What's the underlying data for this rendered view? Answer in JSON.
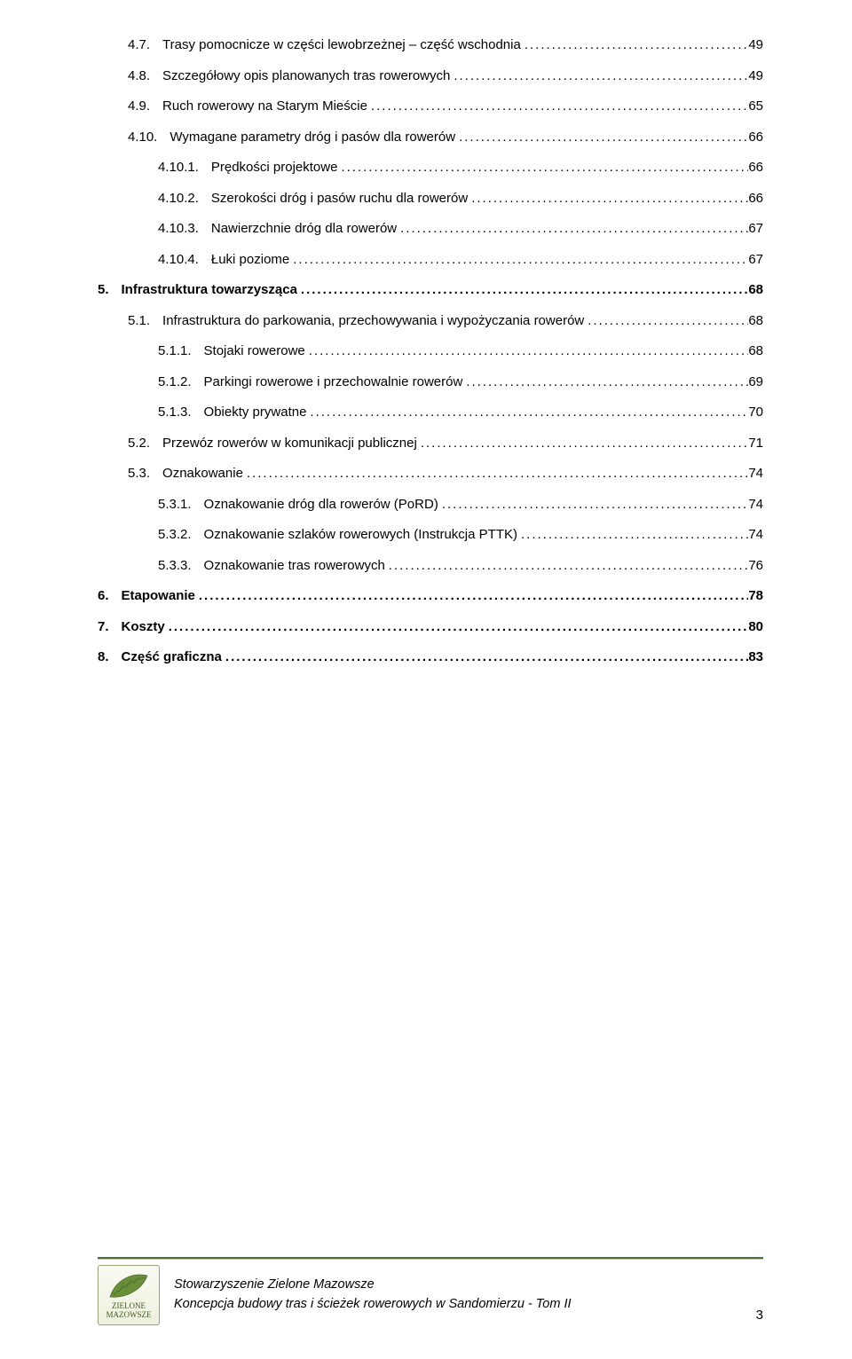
{
  "toc": [
    {
      "lvl": 2,
      "num": "4.7.",
      "title": "Trasy pomocnicze w części lewobrzeżnej – część wschodnia",
      "page": "49",
      "bold": false
    },
    {
      "lvl": 2,
      "num": "4.8.",
      "title": "Szczegółowy opis planowanych tras rowerowych",
      "page": "49",
      "bold": false
    },
    {
      "lvl": 2,
      "num": "4.9.",
      "title": "Ruch rowerowy na Starym Mieście",
      "page": "65",
      "bold": false
    },
    {
      "lvl": 2,
      "num": "4.10.",
      "title": "Wymagane parametry dróg i pasów dla rowerów",
      "page": "66",
      "bold": false
    },
    {
      "lvl": 3,
      "num": "4.10.1.",
      "title": "Prędkości projektowe",
      "page": "66",
      "bold": false
    },
    {
      "lvl": 3,
      "num": "4.10.2.",
      "title": "Szerokości dróg i pasów ruchu dla rowerów",
      "page": "66",
      "bold": false
    },
    {
      "lvl": 3,
      "num": "4.10.3.",
      "title": "Nawierzchnie dróg dla rowerów",
      "page": "67",
      "bold": false
    },
    {
      "lvl": 3,
      "num": "4.10.4.",
      "title": "Łuki poziome",
      "page": "67",
      "bold": false
    },
    {
      "lvl": 1,
      "num": "5.",
      "title": "Infrastruktura towarzysząca",
      "page": "68",
      "bold": true
    },
    {
      "lvl": 2,
      "num": "5.1.",
      "title": "Infrastruktura do parkowania, przechowywania i wypożyczania rowerów",
      "page": "68",
      "bold": false
    },
    {
      "lvl": 3,
      "num": "5.1.1.",
      "title": "Stojaki rowerowe",
      "page": "68",
      "bold": false
    },
    {
      "lvl": 3,
      "num": "5.1.2.",
      "title": "Parkingi rowerowe i przechowalnie rowerów",
      "page": "69",
      "bold": false
    },
    {
      "lvl": 3,
      "num": "5.1.3.",
      "title": "Obiekty prywatne",
      "page": "70",
      "bold": false
    },
    {
      "lvl": 2,
      "num": "5.2.",
      "title": "Przewóz rowerów w komunikacji publicznej",
      "page": "71",
      "bold": false
    },
    {
      "lvl": 2,
      "num": "5.3.",
      "title": "Oznakowanie",
      "page": "74",
      "bold": false
    },
    {
      "lvl": 3,
      "num": "5.3.1.",
      "title": "Oznakowanie dróg dla rowerów (PoRD)",
      "page": "74",
      "bold": false
    },
    {
      "lvl": 3,
      "num": "5.3.2.",
      "title": "Oznakowanie szlaków rowerowych (Instrukcja PTTK)",
      "page": "74",
      "bold": false
    },
    {
      "lvl": 3,
      "num": "5.3.3.",
      "title": "Oznakowanie tras rowerowych",
      "page": "76",
      "bold": false
    },
    {
      "lvl": 1,
      "num": "6.",
      "title": "Etapowanie",
      "page": "78",
      "bold": true
    },
    {
      "lvl": 1,
      "num": "7.",
      "title": "Koszty",
      "page": "80",
      "bold": true
    },
    {
      "lvl": 1,
      "num": "8.",
      "title": "Część graficzna",
      "page": "83",
      "bold": true
    }
  ],
  "footer": {
    "org": "Stowarzyszenie Zielone Mazowsze",
    "doc": "Koncepcja budowy tras i ścieżek rowerowych w Sandomierzu - Tom II",
    "page": "3",
    "logo_top": "ZIELONE",
    "logo_bottom": "MAZOWSZE"
  },
  "colors": {
    "rule_dark": "#4f6f3a",
    "rule_light": "#b7cd9e",
    "logo_border": "#9aa07a",
    "logo_text": "#3f5a23",
    "leaf_fill": "#6a8f3a",
    "background": "#ffffff",
    "text": "#000000"
  }
}
